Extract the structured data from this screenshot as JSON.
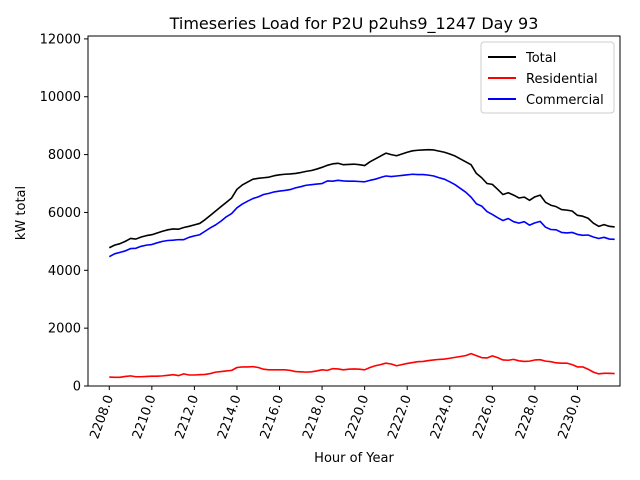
{
  "chart_data": {
    "type": "line",
    "title": "Timeseries Load for P2U p2uhs9_1247  Day 93",
    "xlabel": "Hour of Year",
    "ylabel": "kW total",
    "xlim": [
      2207.0,
      2232.0
    ],
    "ylim": [
      0,
      12100
    ],
    "xticks": [
      2208.0,
      2210.0,
      2212.0,
      2214.0,
      2216.0,
      2218.0,
      2220.0,
      2222.0,
      2224.0,
      2226.0,
      2228.0,
      2230.0
    ],
    "xtick_labels": [
      "2208.0",
      "2210.0",
      "2212.0",
      "2214.0",
      "2216.0",
      "2218.0",
      "2220.0",
      "2222.0",
      "2224.0",
      "2226.0",
      "2228.0",
      "2230.0"
    ],
    "yticks": [
      0,
      2000,
      4000,
      6000,
      8000,
      10000,
      12000
    ],
    "ytick_labels": [
      "0",
      "2000",
      "4000",
      "6000",
      "8000",
      "10000",
      "12000"
    ],
    "legend_position": "top-right",
    "x": [
      2208.0,
      2208.25,
      2208.5,
      2208.75,
      2209.0,
      2209.25,
      2209.5,
      2209.75,
      2210.0,
      2210.25,
      2210.5,
      2210.75,
      2211.0,
      2211.25,
      2211.5,
      2211.75,
      2212.0,
      2212.25,
      2212.5,
      2212.75,
      2213.0,
      2213.25,
      2213.5,
      2213.75,
      2214.0,
      2214.25,
      2214.5,
      2214.75,
      2215.0,
      2215.25,
      2215.5,
      2215.75,
      2216.0,
      2216.25,
      2216.5,
      2216.75,
      2217.0,
      2217.25,
      2217.5,
      2217.75,
      2218.0,
      2218.25,
      2218.5,
      2218.75,
      2219.0,
      2219.25,
      2219.5,
      2219.75,
      2220.0,
      2220.25,
      2220.5,
      2220.75,
      2221.0,
      2221.25,
      2221.5,
      2221.75,
      2222.0,
      2222.25,
      2222.5,
      2222.75,
      2223.0,
      2223.25,
      2223.5,
      2223.75,
      2224.0,
      2224.25,
      2224.5,
      2224.75,
      2225.0,
      2225.25,
      2225.5,
      2225.75,
      2226.0,
      2226.25,
      2226.5,
      2226.75,
      2227.0,
      2227.25,
      2227.5,
      2227.75,
      2228.0,
      2228.25,
      2228.5,
      2228.75,
      2229.0,
      2229.25,
      2229.5,
      2229.75,
      2230.0,
      2230.25,
      2230.5,
      2230.75,
      2231.0,
      2231.25,
      2231.5,
      2231.75
    ],
    "series": [
      {
        "name": "Total",
        "color": "#000000",
        "values": [
          4780,
          4870,
          4920,
          5000,
          5100,
          5080,
          5150,
          5200,
          5230,
          5290,
          5350,
          5400,
          5430,
          5420,
          5480,
          5520,
          5570,
          5620,
          5750,
          5900,
          6050,
          6200,
          6350,
          6500,
          6800,
          6950,
          7050,
          7150,
          7180,
          7200,
          7220,
          7270,
          7300,
          7320,
          7330,
          7350,
          7380,
          7420,
          7450,
          7500,
          7560,
          7630,
          7680,
          7700,
          7650,
          7660,
          7670,
          7650,
          7620,
          7750,
          7850,
          7950,
          8050,
          8000,
          7960,
          8020,
          8080,
          8130,
          8150,
          8160,
          8170,
          8160,
          8120,
          8080,
          8020,
          7950,
          7850,
          7750,
          7650,
          7350,
          7200,
          7000,
          6970,
          6800,
          6620,
          6680,
          6600,
          6500,
          6530,
          6420,
          6540,
          6600,
          6350,
          6250,
          6200,
          6100,
          6080,
          6050,
          5900,
          5870,
          5800,
          5630,
          5520,
          5580,
          5520,
          5500
        ]
      },
      {
        "name": "Residential",
        "color": "#ff0000",
        "values": [
          310,
          300,
          300,
          330,
          350,
          320,
          320,
          330,
          340,
          340,
          350,
          370,
          390,
          360,
          420,
          380,
          380,
          390,
          400,
          430,
          480,
          500,
          520,
          540,
          640,
          660,
          660,
          670,
          640,
          580,
          560,
          560,
          560,
          560,
          540,
          500,
          490,
          480,
          490,
          520,
          560,
          540,
          600,
          590,
          560,
          580,
          590,
          580,
          560,
          640,
          700,
          740,
          790,
          760,
          700,
          740,
          780,
          810,
          840,
          850,
          880,
          900,
          920,
          930,
          960,
          990,
          1020,
          1050,
          1120,
          1050,
          980,
          970,
          1040,
          980,
          900,
          890,
          920,
          870,
          850,
          860,
          900,
          910,
          860,
          840,
          800,
          790,
          790,
          740,
          660,
          660,
          580,
          480,
          420,
          440,
          440,
          430
        ]
      },
      {
        "name": "Commercial",
        "color": "#0000ff",
        "values": [
          4470,
          4570,
          4620,
          4670,
          4750,
          4760,
          4830,
          4870,
          4890,
          4950,
          5000,
          5030,
          5040,
          5060,
          5060,
          5140,
          5190,
          5230,
          5350,
          5470,
          5570,
          5700,
          5850,
          5960,
          6160,
          6290,
          6390,
          6480,
          6540,
          6620,
          6660,
          6710,
          6740,
          6760,
          6790,
          6850,
          6890,
          6940,
          6960,
          6980,
          7000,
          7090,
          7080,
          7110,
          7090,
          7080,
          7080,
          7070,
          7060,
          7110,
          7150,
          7210,
          7260,
          7240,
          7260,
          7280,
          7300,
          7320,
          7310,
          7310,
          7290,
          7260,
          7200,
          7150,
          7060,
          6960,
          6830,
          6700,
          6530,
          6300,
          6220,
          6030,
          5930,
          5820,
          5720,
          5790,
          5680,
          5630,
          5680,
          5560,
          5640,
          5690,
          5490,
          5410,
          5400,
          5310,
          5290,
          5310,
          5240,
          5210,
          5220,
          5150,
          5100,
          5140,
          5080,
          5070
        ]
      }
    ]
  }
}
